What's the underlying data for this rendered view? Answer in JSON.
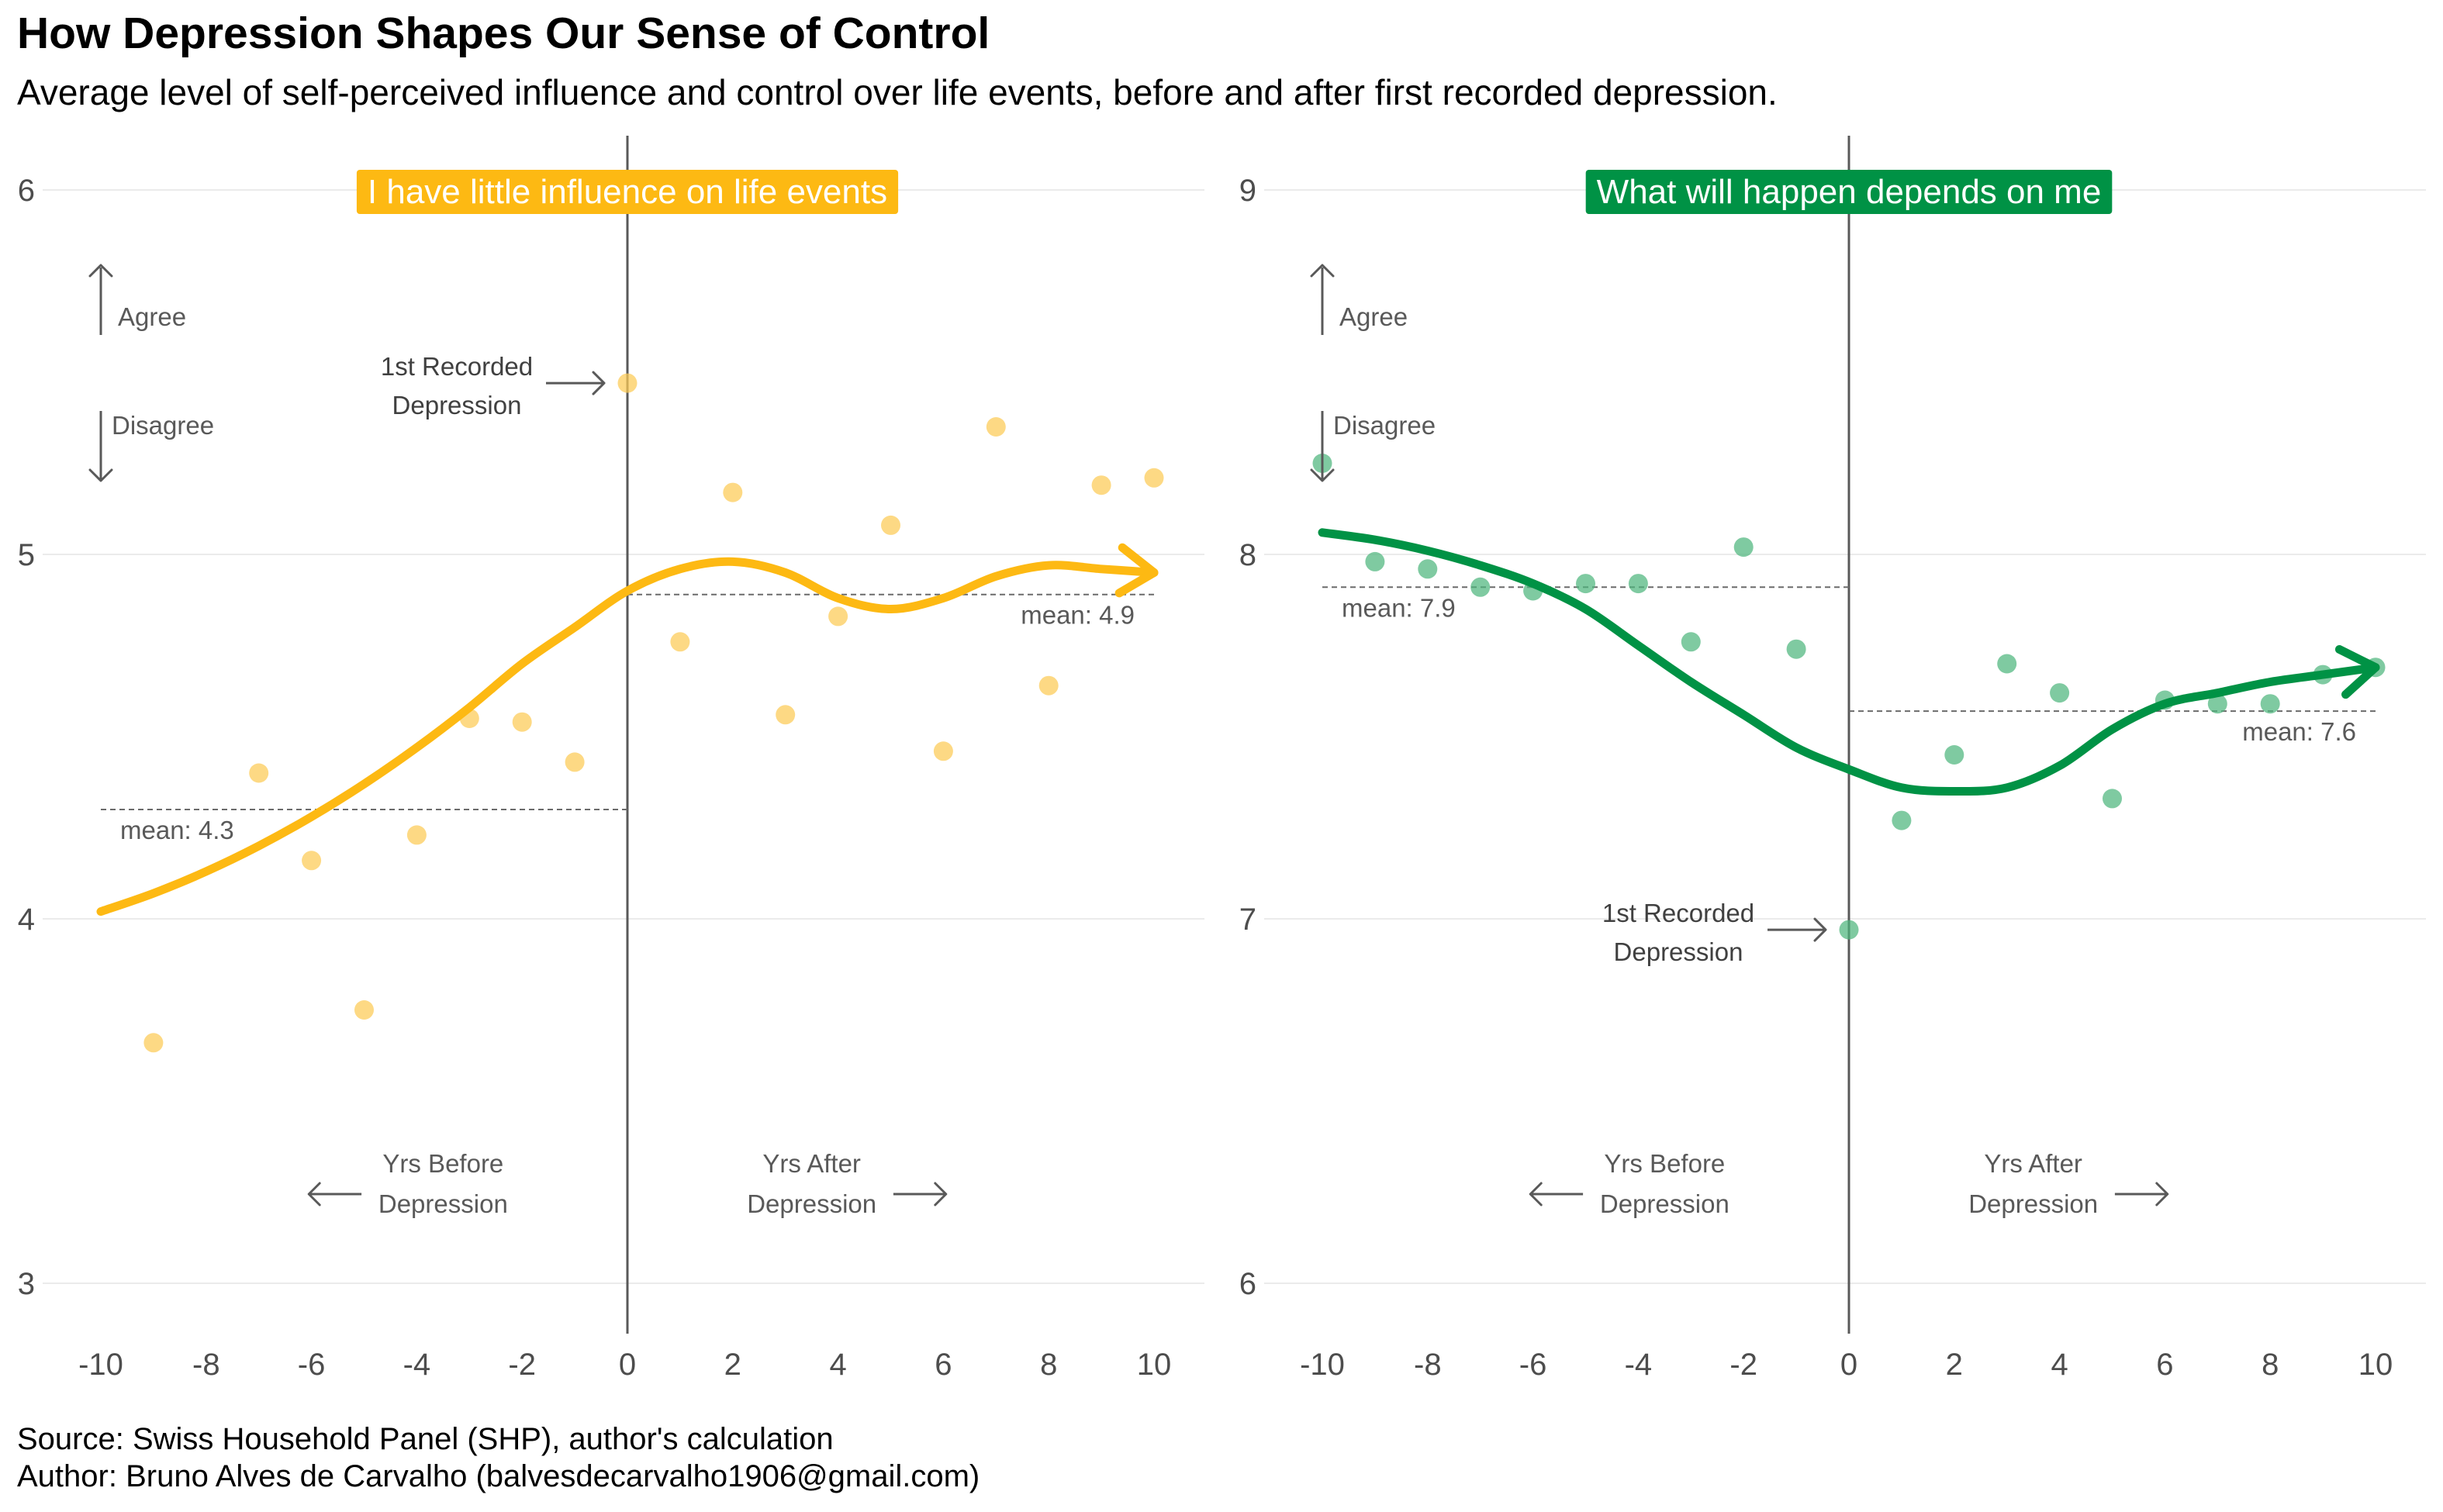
{
  "title": "How Depression Shapes Our Sense of Control",
  "subtitle": "Average level of self-perceived influence and control over life events, before and after first recorded depression.",
  "footer": {
    "source": "Source: Swiss Household Panel (SHP), author's calculation",
    "author": "Author: Bruno Alves de Carvalho (balvesdecarvalho1906@gmail.com)"
  },
  "annotations": {
    "agree": "Agree",
    "disagree": "Disagree",
    "first_recorded_line1": "1st Recorded",
    "first_recorded_line2": "Depression",
    "yrs_before_line1": "Yrs Before",
    "yrs_before_line2": "Depression",
    "yrs_after_line1": "Yrs After",
    "yrs_after_line2": "Depression"
  },
  "chart_data": [
    {
      "type": "scatter",
      "panel_label": "I have little influence on life events",
      "color": "#FDB913",
      "point_color": "#FCCB55",
      "xlim": [
        -10,
        10
      ],
      "ylim": [
        3,
        6
      ],
      "x_ticks": [
        -10,
        -8,
        -6,
        -4,
        -2,
        0,
        2,
        4,
        6,
        8,
        10
      ],
      "y_ticks": [
        3,
        4,
        5,
        6
      ],
      "points": {
        "x": [
          -9,
          -7,
          -6,
          -5,
          -4,
          -3,
          -2,
          -1,
          0,
          1,
          2,
          3,
          4,
          5,
          6,
          7,
          8,
          9,
          10
        ],
        "y": [
          3.66,
          4.4,
          4.16,
          3.75,
          4.23,
          4.55,
          4.54,
          4.43,
          5.47,
          4.76,
          5.17,
          4.56,
          4.83,
          5.08,
          4.46,
          5.35,
          4.64,
          5.19,
          5.21
        ]
      },
      "trend": {
        "x": [
          -10,
          -9,
          -8,
          -7,
          -6,
          -5,
          -4,
          -3,
          -2,
          -1,
          0,
          1,
          2,
          3,
          4,
          5,
          6,
          7,
          8,
          9,
          10
        ],
        "y": [
          4.02,
          4.07,
          4.13,
          4.2,
          4.28,
          4.37,
          4.47,
          4.58,
          4.7,
          4.8,
          4.9,
          4.96,
          4.98,
          4.95,
          4.88,
          4.85,
          4.88,
          4.94,
          4.97,
          4.96,
          4.95
        ]
      },
      "means": [
        {
          "label": "mean: 4.3",
          "value": 4.3,
          "x_range": [
            -10,
            0
          ]
        },
        {
          "label": "mean: 4.9",
          "value": 4.89,
          "x_range": [
            0,
            10
          ]
        }
      ]
    },
    {
      "type": "scatter",
      "panel_label": "What will happen depends on me",
      "color": "#009245",
      "point_color": "#4DB57D",
      "xlim": [
        -10,
        10
      ],
      "ylim": [
        6,
        9
      ],
      "x_ticks": [
        -10,
        -8,
        -6,
        -4,
        -2,
        0,
        2,
        4,
        6,
        8,
        10
      ],
      "y_ticks": [
        6,
        7,
        8,
        9
      ],
      "points": {
        "x": [
          -10,
          -9,
          -8,
          -7,
          -6,
          -5,
          -4,
          -3,
          -2,
          -1,
          0,
          1,
          2,
          3,
          4,
          5,
          6,
          7,
          8,
          9,
          10
        ],
        "y": [
          8.25,
          7.98,
          7.96,
          7.91,
          7.9,
          7.92,
          7.92,
          7.76,
          8.02,
          7.74,
          6.97,
          7.27,
          7.45,
          7.7,
          7.62,
          7.33,
          7.6,
          7.59,
          7.59,
          7.67,
          7.69
        ]
      },
      "trend": {
        "x": [
          -10,
          -9,
          -8,
          -7,
          -6,
          -5,
          -4,
          -3,
          -2,
          -1,
          0,
          1,
          2,
          3,
          4,
          5,
          6,
          7,
          8,
          9,
          10
        ],
        "y": [
          8.06,
          8.04,
          8.01,
          7.97,
          7.92,
          7.85,
          7.75,
          7.65,
          7.56,
          7.47,
          7.41,
          7.36,
          7.35,
          7.36,
          7.42,
          7.52,
          7.59,
          7.62,
          7.65,
          7.67,
          7.69
        ]
      },
      "means": [
        {
          "label": "mean: 7.9",
          "value": 7.91,
          "x_range": [
            -10,
            0
          ]
        },
        {
          "label": "mean: 7.6",
          "value": 7.57,
          "x_range": [
            0,
            10
          ]
        }
      ]
    }
  ]
}
